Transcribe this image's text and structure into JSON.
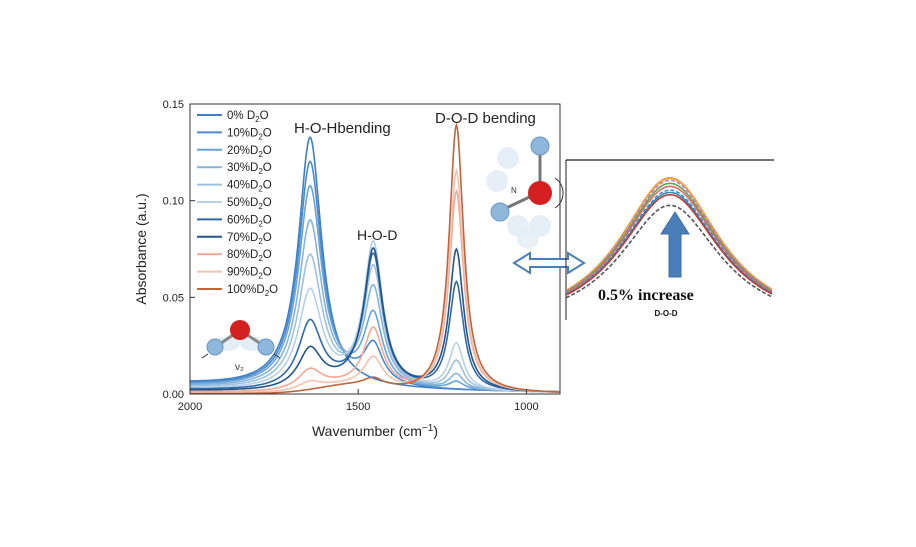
{
  "chart_data": [
    {
      "type": "line",
      "title": "",
      "xlabel": "Wavenumber (cm⁻¹)",
      "ylabel": "Absorbance (a.u.)",
      "xlim": [
        2000,
        900
      ],
      "ylim": [
        0,
        0.15
      ],
      "x_reversed": true,
      "xticks": [
        2000,
        1500,
        1000
      ],
      "xtick_labels": [
        "2000",
        "1500",
        "1000"
      ],
      "yticks": [
        0,
        0.05,
        0.1,
        0.15
      ],
      "ytick_labels": [
        "0.00",
        "0.05",
        "0.10",
        "0.15"
      ],
      "grid": false,
      "legend_position": "top-left",
      "peak_labels": {
        "hoh": "H-O-Hbending",
        "hod": "H-O-D",
        "dod": "D-O-D bending"
      },
      "peaks": {
        "hoh_center": 1643,
        "hod_center": 1455,
        "dod_center": 1208
      },
      "series": [
        {
          "name": "0% D₂O",
          "legend": "0% D",
          "color": "#3f7fc6",
          "hoh": 0.13,
          "hod": 0.0,
          "dod": 0.0
        },
        {
          "name": "10%D₂O",
          "legend": "10%D",
          "color": "#4a8bcd",
          "hoh": 0.117,
          "hod": 0.02,
          "dod": 0.0
        },
        {
          "name": "20%D₂O",
          "legend": "20%D",
          "color": "#6aa3d8",
          "hoh": 0.104,
          "hod": 0.036,
          "dod": 0.004
        },
        {
          "name": "30%D₂O",
          "legend": "30%D",
          "color": "#86b4dc",
          "hoh": 0.086,
          "hod": 0.05,
          "dod": 0.008
        },
        {
          "name": "40%D₂O",
          "legend": "40%D",
          "color": "#9dc1de",
          "hoh": 0.068,
          "hod": 0.061,
          "dod": 0.015
        },
        {
          "name": "50%D₂O",
          "legend": "50%D",
          "color": "#b7d1e6",
          "hoh": 0.05,
          "hod": 0.074,
          "dod": 0.024
        },
        {
          "name": "60%D₂O",
          "legend": "60%D",
          "color": "#2f6aa6",
          "hoh": 0.034,
          "hod": 0.068,
          "dod": 0.056
        },
        {
          "name": "70%D₂O",
          "legend": "70%D",
          "color": "#24558d",
          "hoh": 0.02,
          "hod": 0.071,
          "dod": 0.073
        },
        {
          "name": "80%D₂O",
          "legend": "80%D",
          "color": "#efa995",
          "hoh": 0.01,
          "hod": 0.03,
          "dod": 0.104
        },
        {
          "name": "90%D₂O",
          "legend": "90%D",
          "color": "#f2c1b2",
          "hoh": 0.004,
          "hod": 0.015,
          "dod": 0.115
        },
        {
          "name": "100%D₂O",
          "legend": "100%D",
          "color": "#c0643a",
          "hoh": 0.0,
          "hod": 0.004,
          "dod": 0.139
        }
      ]
    },
    {
      "type": "line",
      "title": "",
      "inset_label": "D-O-D",
      "annotation": "0.5% increase",
      "grid": false,
      "series_colors": [
        "#f0a23a",
        "#c77dd2",
        "#5aa84f",
        "#e06a6a",
        "#4a8bcd",
        "#2f8fb0",
        "#c23b3b",
        "#555555"
      ],
      "series_peaks": [
        1.0,
        0.985,
        0.965,
        0.945,
        0.92,
        0.905,
        0.89,
        0.82
      ]
    }
  ],
  "legend_subscript": "2",
  "legend_suffix": "O",
  "molecule_labels": {
    "nu2": "ν₂",
    "n": "N"
  },
  "colors": {
    "arrow": "#4a7eb8",
    "axis": "#333333",
    "oxygen": "#d42020",
    "hydrogen": "#b9d3ea"
  }
}
